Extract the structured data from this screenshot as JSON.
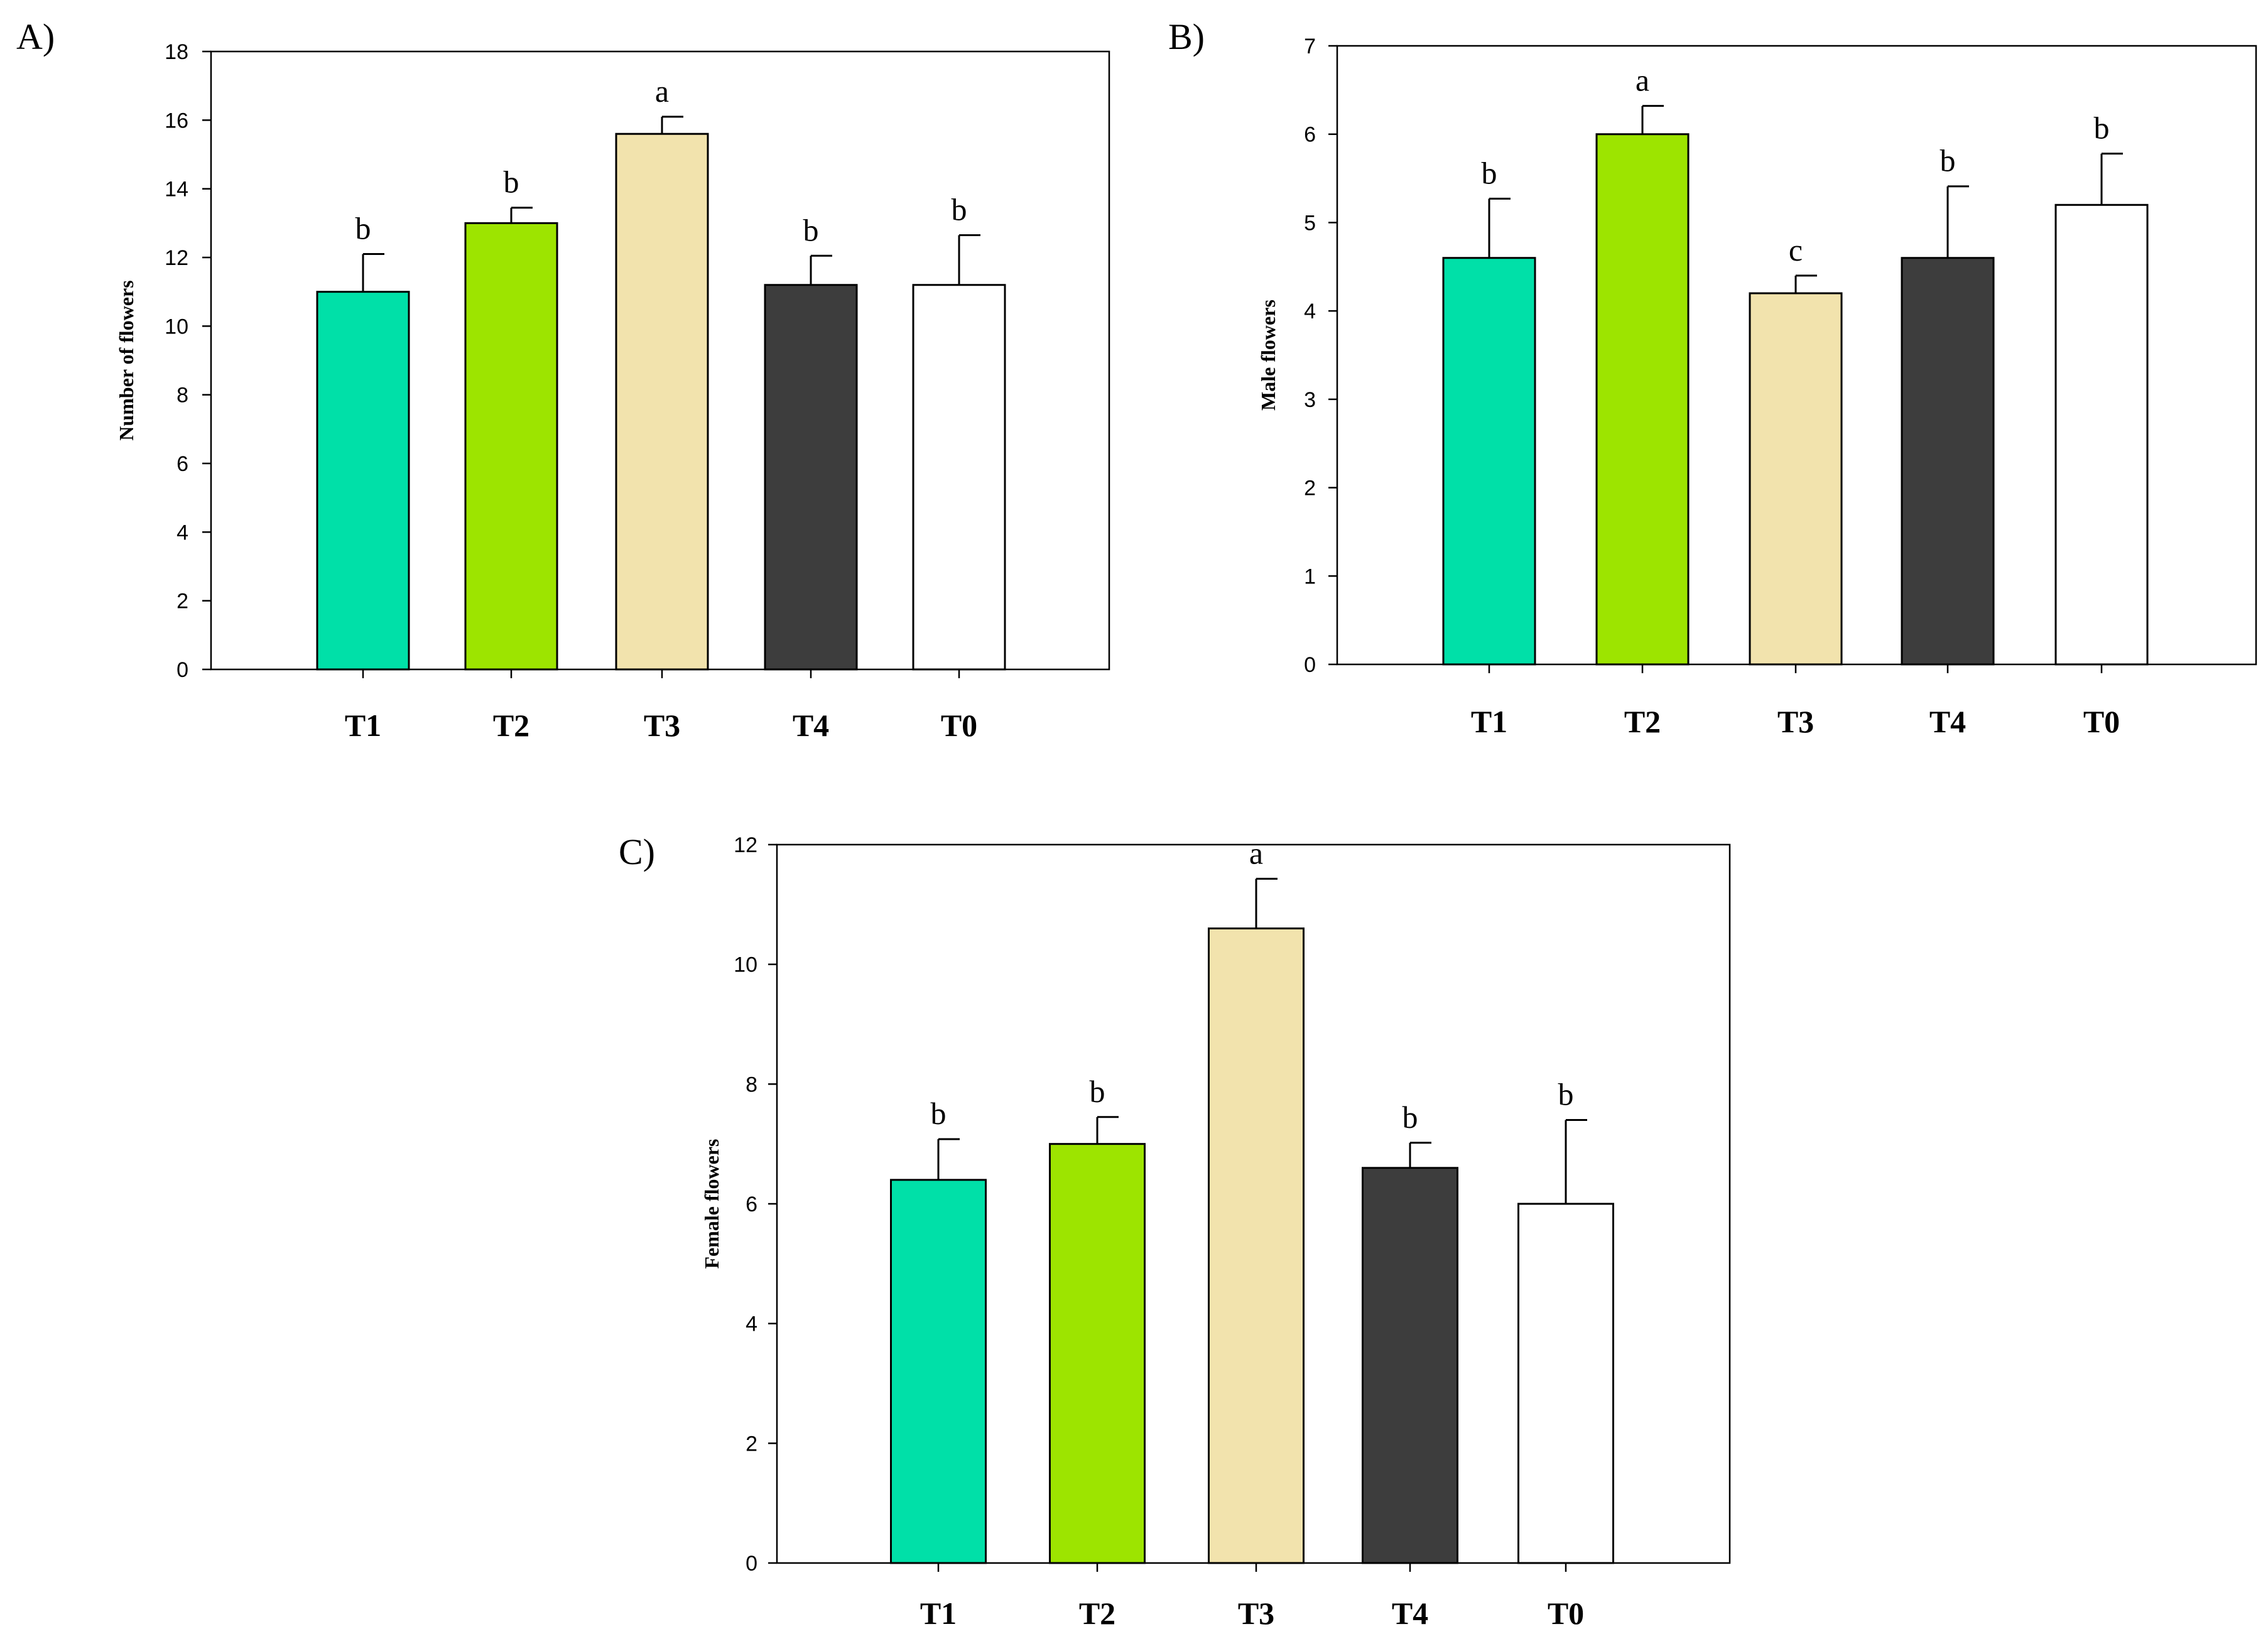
{
  "chart_data": [
    {
      "type": "bar",
      "panel_label": "A)",
      "ylabel": "Number of flowers",
      "xlabel": "",
      "ylim": [
        0,
        18
      ],
      "yticks": [
        0,
        2,
        4,
        6,
        8,
        10,
        12,
        14,
        16,
        18
      ],
      "categories": [
        "T1",
        "T2",
        "T3",
        "T4",
        "T0"
      ],
      "values": [
        11.0,
        13.0,
        15.6,
        11.2,
        11.2
      ],
      "errors": [
        1.1,
        0.45,
        0.5,
        0.85,
        1.45
      ],
      "letters": [
        "b",
        "b",
        "a",
        "b",
        "b"
      ],
      "colors": [
        "#00e0a8",
        "#9de400",
        "#f2e3ad",
        "#3d3d3d",
        "#ffffff"
      ],
      "grid": false
    },
    {
      "type": "bar",
      "panel_label": "B)",
      "ylabel": "Male flowers",
      "xlabel": "",
      "ylim": [
        0,
        7
      ],
      "yticks": [
        0,
        1,
        2,
        3,
        4,
        5,
        6,
        7
      ],
      "categories": [
        "T1",
        "T2",
        "T3",
        "T4",
        "T0"
      ],
      "values": [
        4.6,
        6.0,
        4.2,
        4.6,
        5.2
      ],
      "errors": [
        0.67,
        0.32,
        0.2,
        0.81,
        0.58
      ],
      "letters": [
        "b",
        "a",
        "c",
        "b",
        "b"
      ],
      "colors": [
        "#00e0a8",
        "#9de400",
        "#f2e3ad",
        "#3d3d3d",
        "#ffffff"
      ],
      "grid": false
    },
    {
      "type": "bar",
      "panel_label": "C)",
      "ylabel": "Female flowers",
      "xlabel": "",
      "ylim": [
        0,
        12
      ],
      "yticks": [
        0,
        2,
        4,
        6,
        8,
        10,
        12
      ],
      "categories": [
        "T1",
        "T2",
        "T3",
        "T4",
        "T0"
      ],
      "values": [
        6.4,
        7.0,
        10.6,
        6.6,
        6.0
      ],
      "errors": [
        0.68,
        0.45,
        0.83,
        0.42,
        1.4
      ],
      "letters": [
        "b",
        "b",
        "a",
        "b",
        "b"
      ],
      "colors": [
        "#00e0a8",
        "#9de400",
        "#f2e3ad",
        "#3d3d3d",
        "#ffffff"
      ],
      "grid": false
    }
  ]
}
